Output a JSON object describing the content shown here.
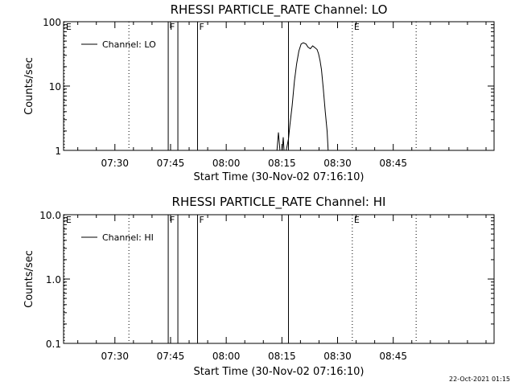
{
  "timestamp": "22-Oct-2021 01:15",
  "chart_data": [
    {
      "type": "line",
      "title": "RHESSI PARTICLE_RATE Channel: LO",
      "xlabel": "Start Time (30-Nov-02 07:16:10)",
      "ylabel": "Counts/sec",
      "y_scale": "log",
      "ylim": [
        1,
        100
      ],
      "ytick_labels": [
        "1",
        "10",
        "100"
      ],
      "ytick_values": [
        1,
        10,
        100
      ],
      "x_range_minutes": [
        0,
        116
      ],
      "xtick_labels": [
        "07:30",
        "07:45",
        "08:00",
        "08:15",
        "08:30",
        "08:45"
      ],
      "xtick_values_min": [
        13.83,
        28.83,
        43.83,
        58.83,
        73.83,
        88.83
      ],
      "legend": {
        "entry": "Channel: LO",
        "position": "top-left"
      },
      "grid": false,
      "markers": [
        {
          "label": "E",
          "x": 0.2,
          "style": "dotted"
        },
        {
          "label": "",
          "x": 17.6,
          "style": "dotted"
        },
        {
          "label": "F",
          "x": 28.2,
          "style": "solid"
        },
        {
          "label": "",
          "x": 30.8,
          "style": "solid"
        },
        {
          "label": "F",
          "x": 36.1,
          "style": "solid"
        },
        {
          "label": "",
          "x": 60.6,
          "style": "solid"
        },
        {
          "label": "E",
          "x": 77.8,
          "style": "dotted"
        },
        {
          "label": "",
          "x": 95.0,
          "style": "dotted"
        }
      ],
      "series": [
        {
          "x": [
            57.5,
            57.9,
            58.3,
            58.9,
            59.2,
            59.4,
            60.0,
            60.6,
            61.0,
            61.6,
            62.2,
            62.8,
            63.4,
            64.0,
            64.6,
            65.3,
            65.9,
            66.5,
            67.1,
            67.6,
            68.3,
            68.7,
            69.1,
            69.5,
            70.0,
            70.5,
            71.0,
            71.3
          ],
          "y": [
            1.0,
            1.9,
            1.0,
            1.0,
            1.6,
            1.0,
            1.0,
            1.5,
            2.5,
            5,
            12,
            22,
            35,
            45,
            47,
            45,
            40,
            38,
            42,
            40,
            37,
            32,
            25,
            18,
            9,
            4,
            2,
            1.0
          ]
        }
      ]
    },
    {
      "type": "line",
      "title": "RHESSI PARTICLE_RATE Channel: HI",
      "xlabel": "Start Time (30-Nov-02 07:16:10)",
      "ylabel": "Counts/sec",
      "y_scale": "log",
      "ylim": [
        0.1,
        10
      ],
      "ytick_labels": [
        "0.1",
        "1.0",
        "10.0"
      ],
      "ytick_values": [
        0.1,
        1,
        10
      ],
      "x_range_minutes": [
        0,
        116
      ],
      "xtick_labels": [
        "07:30",
        "07:45",
        "08:00",
        "08:15",
        "08:30",
        "08:45"
      ],
      "xtick_values_min": [
        13.83,
        28.83,
        43.83,
        58.83,
        73.83,
        88.83
      ],
      "legend": {
        "entry": "Channel: HI",
        "position": "top-left"
      },
      "grid": false,
      "markers": [
        {
          "label": "E",
          "x": 0.2,
          "style": "dotted"
        },
        {
          "label": "",
          "x": 17.6,
          "style": "dotted"
        },
        {
          "label": "F",
          "x": 28.2,
          "style": "solid"
        },
        {
          "label": "",
          "x": 30.8,
          "style": "solid"
        },
        {
          "label": "F",
          "x": 36.1,
          "style": "solid"
        },
        {
          "label": "",
          "x": 60.6,
          "style": "solid"
        },
        {
          "label": "E",
          "x": 77.8,
          "style": "dotted"
        },
        {
          "label": "",
          "x": 95.0,
          "style": "dotted"
        }
      ],
      "series": []
    }
  ]
}
